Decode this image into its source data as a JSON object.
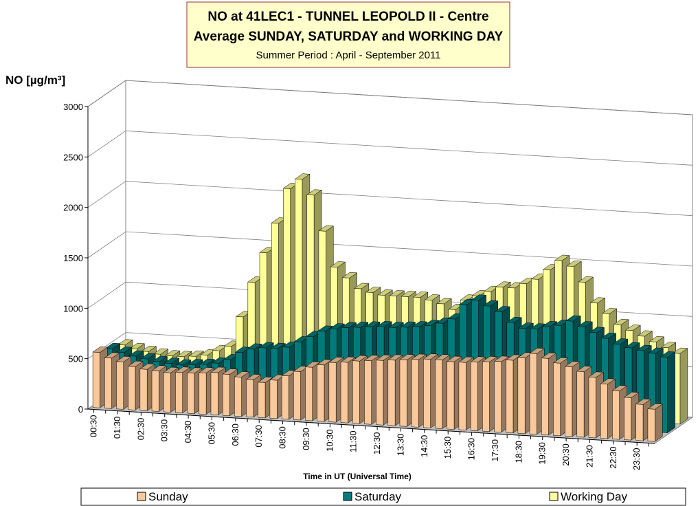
{
  "chart_data": {
    "type": "bar3d",
    "title": "NO at 41LEC1 - TUNNEL LEOPOLD II - Centre",
    "title2": "Average SUNDAY, SATURDAY and WORKING DAY",
    "subtitle": "Summer Period : April - September 2011",
    "ylabel": "NO [µg/m³]",
    "xlabel": "Time in UT (Universal Time)",
    "categories": [
      "00:30",
      null,
      "01:30",
      null,
      "02:30",
      null,
      "03:30",
      null,
      "04:30",
      null,
      "05:30",
      null,
      "06:30",
      null,
      "07:30",
      null,
      "08:30",
      null,
      "09:30",
      null,
      "10:30",
      null,
      "11:30",
      null,
      "12:30",
      null,
      "13:30",
      null,
      "14:30",
      null,
      "15:30",
      null,
      "16:30",
      null,
      "17:30",
      null,
      "18:30",
      null,
      "19:30",
      null,
      "20:30",
      null,
      "21:30",
      null,
      "22:30",
      null,
      "23:30",
      null
    ],
    "series": [
      {
        "name": "Sunday",
        "color": "#f9c89b",
        "values": [
          550,
          500,
          470,
          430,
          410,
          400,
          390,
          400,
          400,
          410,
          420,
          410,
          390,
          370,
          350,
          380,
          430,
          480,
          530,
          560,
          590,
          600,
          620,
          630,
          640,
          650,
          660,
          670,
          680,
          680,
          670,
          670,
          680,
          690,
          700,
          720,
          750,
          800,
          760,
          720,
          690,
          650,
          600,
          540,
          480,
          420,
          360,
          320
        ]
      },
      {
        "name": "Saturday",
        "color": "#007b7b",
        "values": [
          500,
          470,
          440,
          420,
          400,
          390,
          380,
          390,
          400,
          420,
          460,
          540,
          580,
          600,
          600,
          620,
          680,
          740,
          800,
          830,
          850,
          860,
          870,
          880,
          880,
          890,
          900,
          920,
          950,
          1000,
          1150,
          1200,
          1150,
          1100,
          1000,
          950,
          950,
          980,
          1000,
          1050,
          1000,
          950,
          900,
          850,
          820,
          800,
          780,
          750
        ]
      },
      {
        "name": "Working Day",
        "color": "#ffff99",
        "values": [
          450,
          420,
          400,
          380,
          370,
          370,
          380,
          400,
          450,
          500,
          800,
          1150,
          1450,
          1750,
          2100,
          2200,
          2050,
          1700,
          1350,
          1250,
          1150,
          1120,
          1100,
          1100,
          1100,
          1100,
          1080,
          1050,
          1000,
          1100,
          1150,
          1200,
          1250,
          1250,
          1300,
          1350,
          1450,
          1550,
          1500,
          1350,
          1150,
          1050,
          950,
          900,
          850,
          800,
          750,
          700
        ]
      }
    ],
    "ylim": [
      0,
      3000
    ],
    "yticks": [
      0,
      500,
      1000,
      1500,
      2000,
      2500,
      3000
    ],
    "grid": true
  }
}
